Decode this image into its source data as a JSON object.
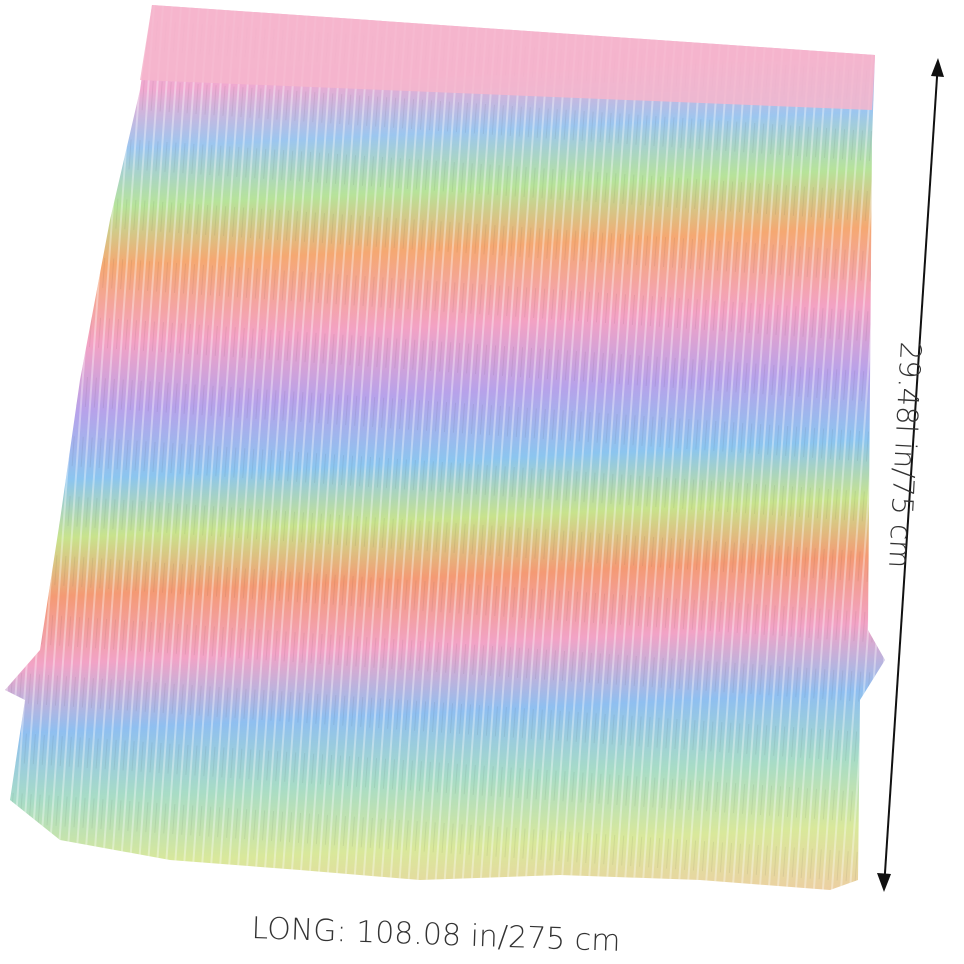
{
  "product": {
    "height_label": "29.48l in/75 cm",
    "width_label": "LONG: 108.08 in/275 cm"
  },
  "colors": {
    "pink": "#f2a7c8",
    "blue": "#8fc3ee",
    "green": "#b9e08e",
    "yellow": "#f6e08a",
    "orange": "#f5a56c",
    "purple": "#c7a3e8",
    "peach": "#f7c4a8"
  }
}
